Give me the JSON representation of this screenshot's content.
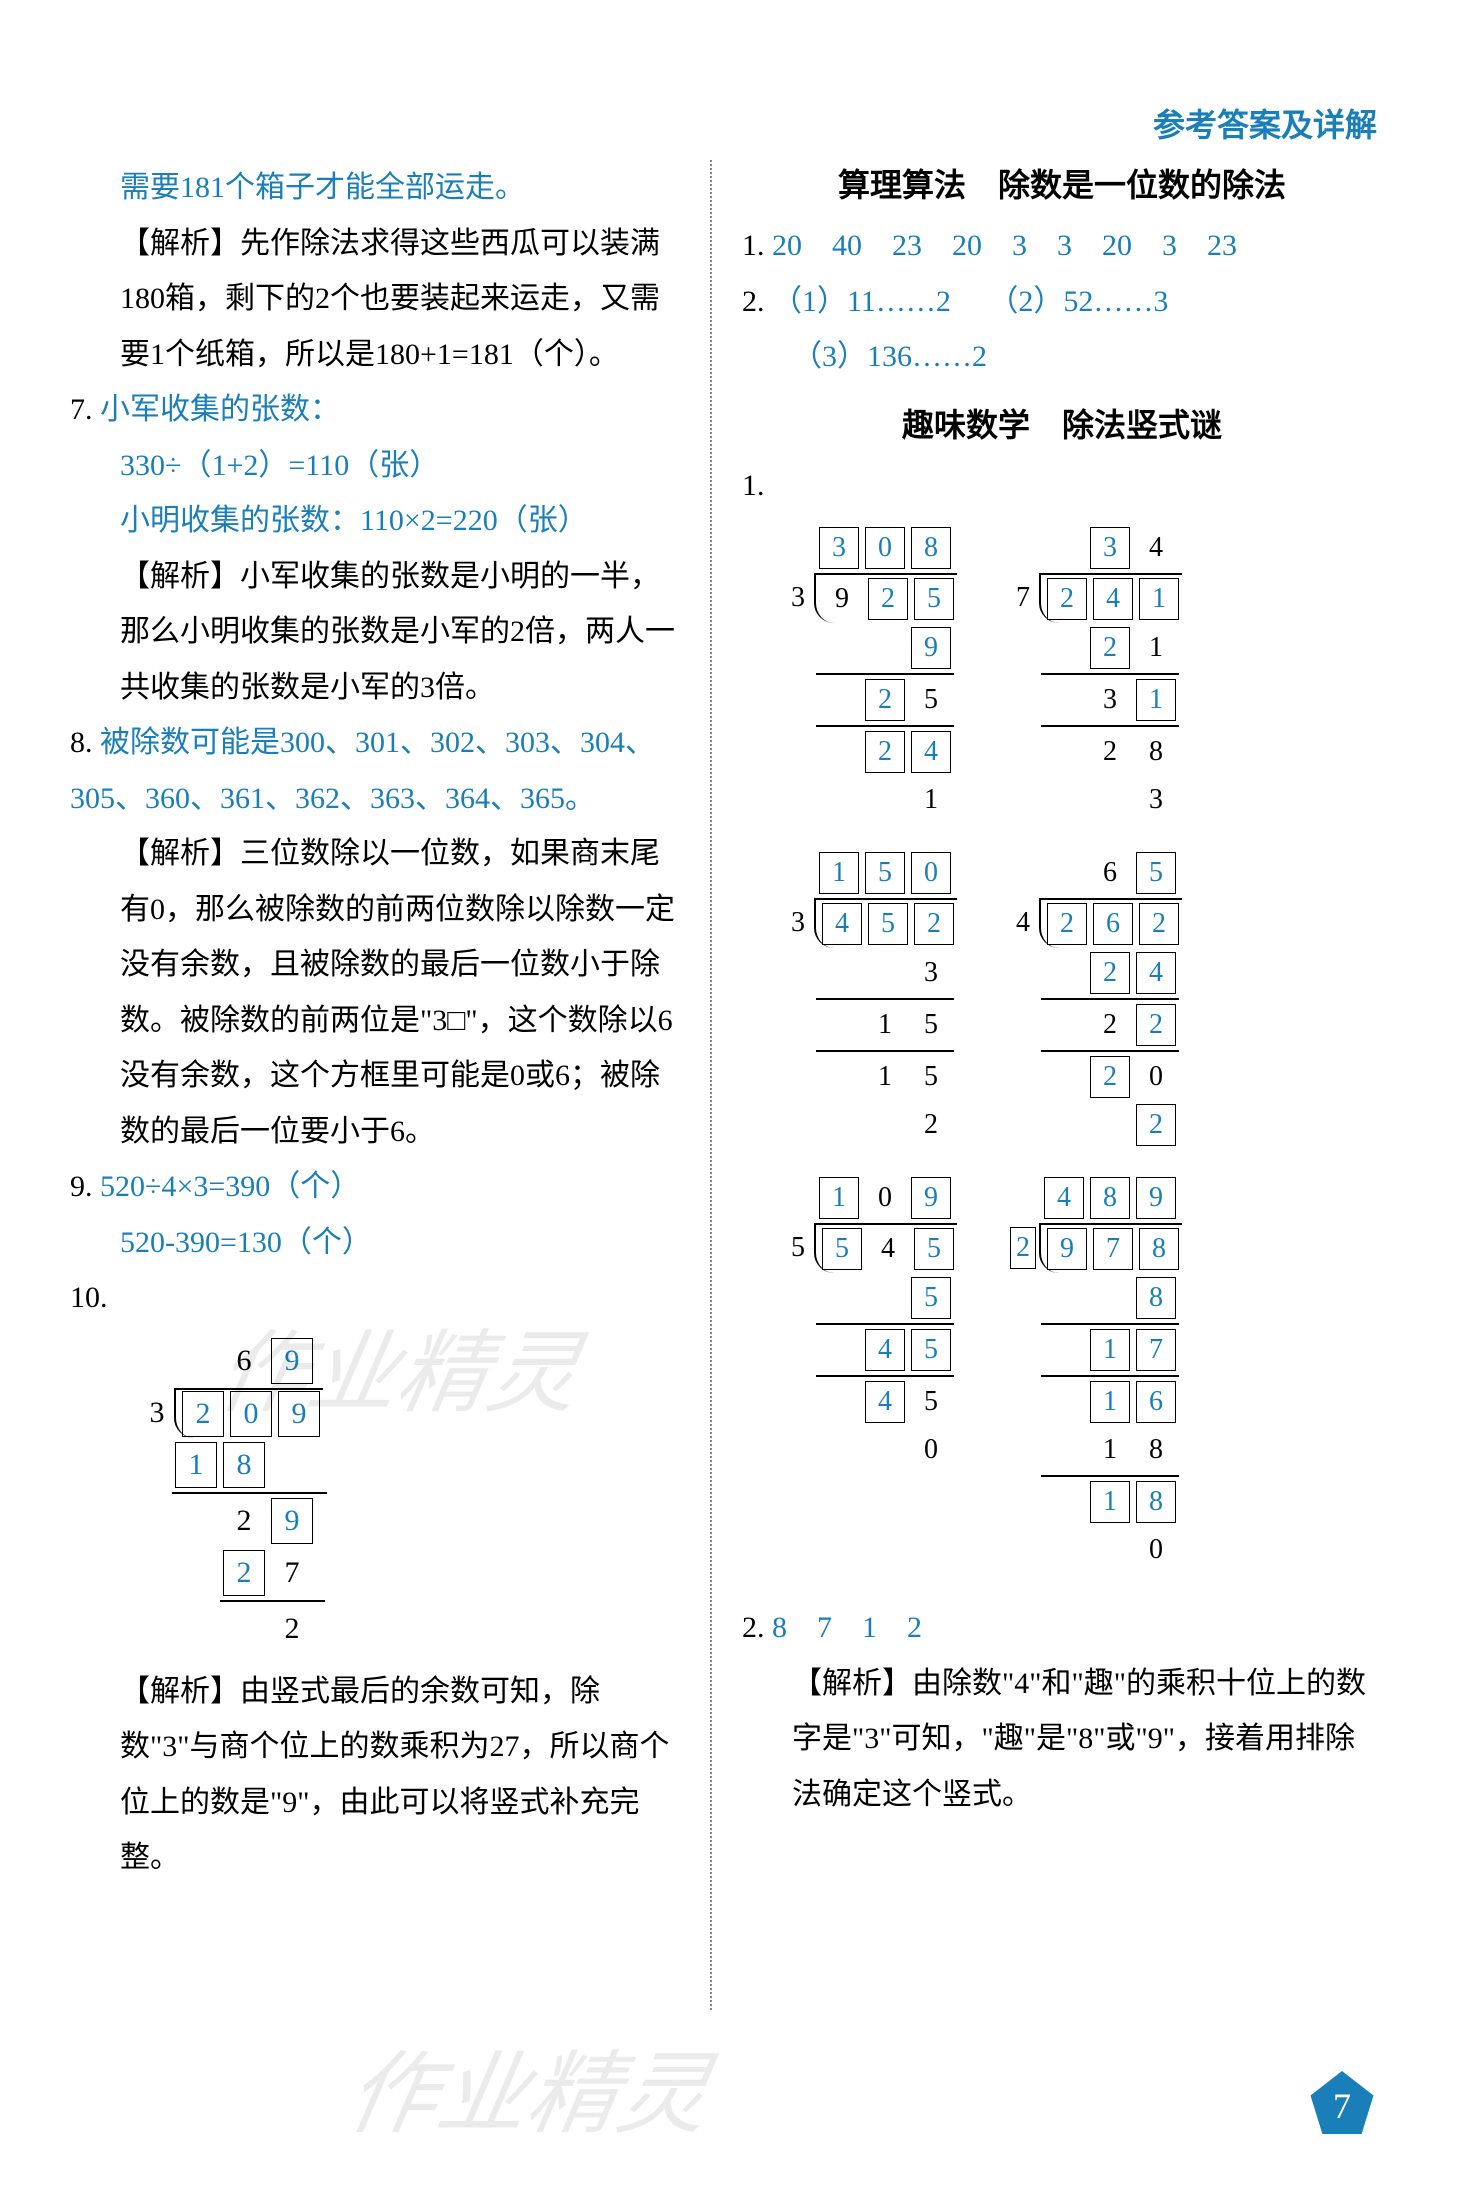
{
  "header": {
    "title": "参考答案及详解"
  },
  "colors": {
    "answer": "#1a7fb8",
    "text": "#000000",
    "background": "#ffffff"
  },
  "left": {
    "line1": "需要181个箱子才能全部运走。",
    "explain1": "【解析】先作除法求得这些西瓜可以装满180箱，剩下的2个也要装起来运走，又需要1个纸箱，所以是180+1=181（个）。",
    "q7label": "7.",
    "q7a": "小军收集的张数：",
    "q7b": "330÷（1+2）=110（张）",
    "q7c": "小明收集的张数：110×2=220（张）",
    "explain7": "【解析】小军收集的张数是小明的一半，那么小明收集的张数是小军的2倍，两人一共收集的张数是小军的3倍。",
    "q8label": "8.",
    "q8a": "被除数可能是300、301、302、303、304、305、360、361、362、363、364、365。",
    "explain8": "【解析】三位数除以一位数，如果商末尾有0，那么被除数的前两位数除以除数一定没有余数，且被除数的最后一位数小于除数。被除数的前两位是\"3□\"，这个数除以6没有余数，这个方框里可能是0或6；被除数的最后一位要小于6。",
    "q9label": "9.",
    "q9a": "520÷4×3=390（个）",
    "q9b": "520-390=130（个）",
    "q10label": "10.",
    "q10_quotient": [
      "6",
      "9"
    ],
    "q10_divisor": "3",
    "q10_dividend": [
      "2",
      "0",
      "9"
    ],
    "q10_r2": [
      "1",
      "8"
    ],
    "q10_r3": [
      "2",
      "9"
    ],
    "q10_r4": [
      "2",
      "7"
    ],
    "q10_rem": "2",
    "explain10": "【解析】由竖式最后的余数可知，除数\"3\"与商个位上的数乘积为27，所以商个位上的数是\"9\"，由此可以将竖式补充完整。"
  },
  "right": {
    "section1": "算理算法　除数是一位数的除法",
    "r1label": "1.",
    "r1answers": [
      "20",
      "40",
      "23",
      "20",
      "3",
      "3",
      "20",
      "3",
      "23"
    ],
    "r2label": "2.",
    "r2a": "（1）11……2",
    "r2b": "（2）52……3",
    "r2c": "（3）136……2",
    "section2": "趣味数学　除法竖式谜",
    "p1label": "1.",
    "div1": {
      "quotient": [
        {
          "v": "3",
          "b": true
        },
        {
          "v": "0",
          "b": true
        },
        {
          "v": "8",
          "b": true
        }
      ],
      "divisor": "3",
      "dividend": [
        {
          "v": "9",
          "b": false
        },
        {
          "v": "2",
          "b": true
        },
        {
          "v": "5",
          "b": true
        }
      ],
      "rows": [
        [
          {
            "v": "9",
            "b": true
          }
        ],
        [
          {
            "v": "2",
            "b": true
          },
          {
            "v": "5",
            "b": false
          }
        ],
        [
          {
            "v": "2",
            "b": true
          },
          {
            "v": "4",
            "b": true
          }
        ],
        [
          {
            "v": "1",
            "b": false
          }
        ]
      ]
    },
    "div2": {
      "quotient": [
        {
          "v": "3",
          "b": true
        },
        {
          "v": "4",
          "b": false
        }
      ],
      "divisor": "7",
      "dividend": [
        {
          "v": "2",
          "b": true
        },
        {
          "v": "4",
          "b": true
        },
        {
          "v": "1",
          "b": true
        }
      ],
      "rows": [
        [
          {
            "v": "2",
            "b": true
          },
          {
            "v": "1",
            "b": false
          }
        ],
        [
          {
            "v": "3",
            "b": false
          },
          {
            "v": "1",
            "b": true
          }
        ],
        [
          {
            "v": "2",
            "b": false
          },
          {
            "v": "8",
            "b": false
          }
        ],
        [
          {
            "v": "3",
            "b": false
          }
        ]
      ]
    },
    "div3": {
      "quotient": [
        {
          "v": "1",
          "b": true
        },
        {
          "v": "5",
          "b": true
        },
        {
          "v": "0",
          "b": true
        }
      ],
      "divisor": "3",
      "dividend": [
        {
          "v": "4",
          "b": true
        },
        {
          "v": "5",
          "b": true
        },
        {
          "v": "2",
          "b": true
        }
      ],
      "rows": [
        [
          {
            "v": "3",
            "b": false
          }
        ],
        [
          {
            "v": "1",
            "b": false
          },
          {
            "v": "5",
            "b": false
          }
        ],
        [
          {
            "v": "1",
            "b": false
          },
          {
            "v": "5",
            "b": false
          }
        ],
        [
          {
            "v": "2",
            "b": false
          }
        ]
      ]
    },
    "div4": {
      "quotient": [
        {
          "v": "6",
          "b": false
        },
        {
          "v": "5",
          "b": true
        }
      ],
      "divisor": "4",
      "dividend": [
        {
          "v": "2",
          "b": true
        },
        {
          "v": "6",
          "b": true
        },
        {
          "v": "2",
          "b": true
        }
      ],
      "rows": [
        [
          {
            "v": "2",
            "b": true
          },
          {
            "v": "4",
            "b": true
          }
        ],
        [
          {
            "v": "2",
            "b": false
          },
          {
            "v": "2",
            "b": true
          }
        ],
        [
          {
            "v": "2",
            "b": true
          },
          {
            "v": "0",
            "b": false
          }
        ],
        [
          {
            "v": "2",
            "b": true
          }
        ]
      ]
    },
    "div5": {
      "quotient": [
        {
          "v": "1",
          "b": true
        },
        {
          "v": "0",
          "b": false
        },
        {
          "v": "9",
          "b": true
        }
      ],
      "divisor": "5",
      "dividend": [
        {
          "v": "5",
          "b": true
        },
        {
          "v": "4",
          "b": false
        },
        {
          "v": "5",
          "b": true
        }
      ],
      "rows": [
        [
          {
            "v": "5",
            "b": true
          }
        ],
        [
          {
            "v": "4",
            "b": true
          },
          {
            "v": "5",
            "b": true
          }
        ],
        [
          {
            "v": "4",
            "b": true
          },
          {
            "v": "5",
            "b": false
          }
        ],
        [
          {
            "v": "0",
            "b": false
          }
        ]
      ]
    },
    "div6": {
      "quotient": [
        {
          "v": "4",
          "b": true
        },
        {
          "v": "8",
          "b": true
        },
        {
          "v": "9",
          "b": true
        }
      ],
      "divisor": "2",
      "dividend": [
        {
          "v": "9",
          "b": true
        },
        {
          "v": "7",
          "b": true
        },
        {
          "v": "8",
          "b": true
        }
      ],
      "rows": [
        [
          {
            "v": "8",
            "b": true
          }
        ],
        [
          {
            "v": "1",
            "b": true
          },
          {
            "v": "7",
            "b": true
          }
        ],
        [
          {
            "v": "1",
            "b": true
          },
          {
            "v": "6",
            "b": true
          }
        ],
        [
          {
            "v": "1",
            "b": false
          },
          {
            "v": "8",
            "b": false
          }
        ],
        [
          {
            "v": "1",
            "b": true
          },
          {
            "v": "8",
            "b": true
          }
        ],
        [
          {
            "v": "0",
            "b": false
          }
        ]
      ]
    },
    "p2label": "2.",
    "p2answers": [
      "8",
      "7",
      "1",
      "2"
    ],
    "explain2": "【解析】由除数\"4\"和\"趣\"的乘积十位上的数字是\"3\"可知，\"趣\"是\"8\"或\"9\"，接着用排除法确定这个竖式。"
  },
  "page_number": "7",
  "watermark": "作业精灵"
}
